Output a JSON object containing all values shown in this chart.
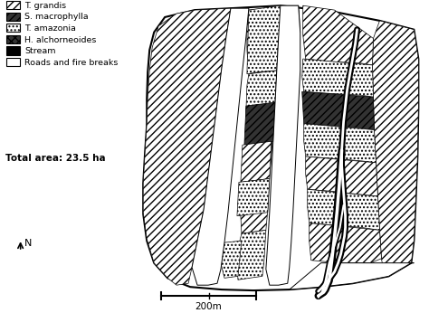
{
  "legend_items": [
    {
      "label": "T. grandis",
      "hatch": "////",
      "facecolor": "white",
      "edgecolor": "black"
    },
    {
      "label": "S. macrophylla",
      "hatch": "////",
      "facecolor": "#444444",
      "edgecolor": "black"
    },
    {
      "label": "T. amazonia",
      "hatch": "....",
      "facecolor": "white",
      "edgecolor": "black"
    },
    {
      "label": "H. alchorneoides",
      "hatch": "xxxx",
      "facecolor": "#333333",
      "edgecolor": "black"
    },
    {
      "label": "Stream",
      "hatch": "",
      "facecolor": "black",
      "edgecolor": "black"
    },
    {
      "label": "Roads and fire breaks",
      "hatch": "",
      "facecolor": "white",
      "edgecolor": "black"
    }
  ],
  "total_area": "Total area: 23.5 ha",
  "scale_label": "200m",
  "background": "white",
  "fig_width": 4.74,
  "fig_height": 3.46,
  "dpi": 100
}
